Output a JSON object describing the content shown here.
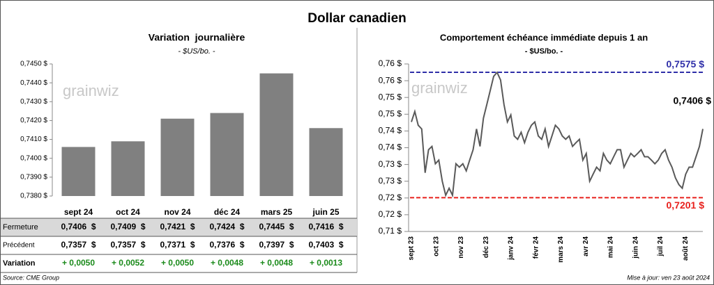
{
  "header": {
    "title": "Dollar canadien"
  },
  "watermark": "grainwiz",
  "chart_data": [
    {
      "type": "bar",
      "title": "Variation  journalière",
      "subtitle": "- $US/bo. -",
      "color": "#808080",
      "categories": [
        "sept 24",
        "oct 24",
        "nov 24",
        "déc 24",
        "mars 25",
        "juin 25"
      ],
      "values": [
        0.7406,
        0.7409,
        0.7421,
        0.7424,
        0.7445,
        0.7416
      ],
      "ylim": [
        0.738,
        0.745
      ],
      "yticks": [
        {
          "value": 0.738,
          "label": "0,7380 $"
        },
        {
          "value": 0.739,
          "label": "0,7390 $"
        },
        {
          "value": 0.74,
          "label": "0,7400 $"
        },
        {
          "value": 0.741,
          "label": "0,7410 $"
        },
        {
          "value": 0.742,
          "label": "0,7420 $"
        },
        {
          "value": 0.743,
          "label": "0,7430 $"
        },
        {
          "value": 0.744,
          "label": "0,7440 $"
        },
        {
          "value": 0.745,
          "label": "0,7450 $"
        }
      ]
    },
    {
      "type": "line",
      "title": "Comportement échéance immédiate depuis 1 an",
      "subtitle": "- $US/bo. -",
      "color": "#595959",
      "x_labels": [
        "sept 23",
        "oct 23",
        "nov 23",
        "déc 23",
        "janv 24",
        "févr 24",
        "mars 24",
        "avr 24",
        "mai 24",
        "juin 24",
        "juil 24",
        "août 24"
      ],
      "values": [
        0.7427,
        0.7458,
        0.7417,
        0.7406,
        0.7275,
        0.7344,
        0.7354,
        0.7302,
        0.7313,
        0.725,
        0.7208,
        0.7229,
        0.7208,
        0.7302,
        0.7292,
        0.7302,
        0.7281,
        0.7313,
        0.7344,
        0.7406,
        0.7354,
        0.7438,
        0.7479,
        0.7521,
        0.7563,
        0.7575,
        0.7552,
        0.7479,
        0.7427,
        0.7448,
        0.7385,
        0.7375,
        0.7396,
        0.7365,
        0.7396,
        0.7417,
        0.7427,
        0.7385,
        0.7375,
        0.7406,
        0.7354,
        0.7385,
        0.7417,
        0.7406,
        0.7385,
        0.7375,
        0.7385,
        0.7354,
        0.7365,
        0.7375,
        0.7313,
        0.7333,
        0.725,
        0.7271,
        0.7292,
        0.7281,
        0.7333,
        0.7313,
        0.7302,
        0.7323,
        0.7344,
        0.7344,
        0.7292,
        0.7313,
        0.7333,
        0.7323,
        0.7333,
        0.7344,
        0.7323,
        0.7323,
        0.7313,
        0.7302,
        0.7313,
        0.7333,
        0.7344,
        0.7313,
        0.7292,
        0.726,
        0.724,
        0.7229,
        0.7271,
        0.7292,
        0.7292,
        0.7323,
        0.7354,
        0.7406
      ],
      "last_label": "0,7406 $",
      "ylim": [
        0.71,
        0.76
      ],
      "yticks": [
        {
          "value": 0.71,
          "label": "0,71 $"
        },
        {
          "value": 0.715,
          "label": "0,72 $"
        },
        {
          "value": 0.72,
          "label": "0,72 $"
        },
        {
          "value": 0.725,
          "label": "0,73 $"
        },
        {
          "value": 0.73,
          "label": "0,73 $"
        },
        {
          "value": 0.735,
          "label": "0,74 $"
        },
        {
          "value": 0.74,
          "label": "0,74 $"
        },
        {
          "value": 0.745,
          "label": "0,75 $"
        },
        {
          "value": 0.75,
          "label": "0,75 $"
        },
        {
          "value": 0.755,
          "label": "0,76 $"
        },
        {
          "value": 0.76,
          "label": "0,76 $"
        }
      ],
      "reference_lines": [
        {
          "value": 0.7575,
          "label": "0,7575 $",
          "color": "#2e2ea8"
        },
        {
          "value": 0.7201,
          "label": "0,7201 $",
          "color": "#e8201c"
        }
      ]
    }
  ],
  "table": {
    "rows": [
      [
        "Fermeture",
        "0,7406  $",
        "0,7409  $",
        "0,7421  $",
        "0,7424  $",
        "0,7445  $",
        "0,7416  $"
      ],
      [
        "Précédent",
        "0,7357  $",
        "0,7357  $",
        "0,7371  $",
        "0,7376  $",
        "0,7397  $",
        "0,7403  $"
      ],
      [
        "Variation",
        "+ 0,0050",
        "+ 0,0052",
        "+ 0,0050",
        "+ 0,0048",
        "+ 0,0048",
        "+ 0,0013"
      ]
    ]
  },
  "footer": {
    "source": "Source: CME Group",
    "updated": "Mise à jour: ven 23 août 2024"
  }
}
